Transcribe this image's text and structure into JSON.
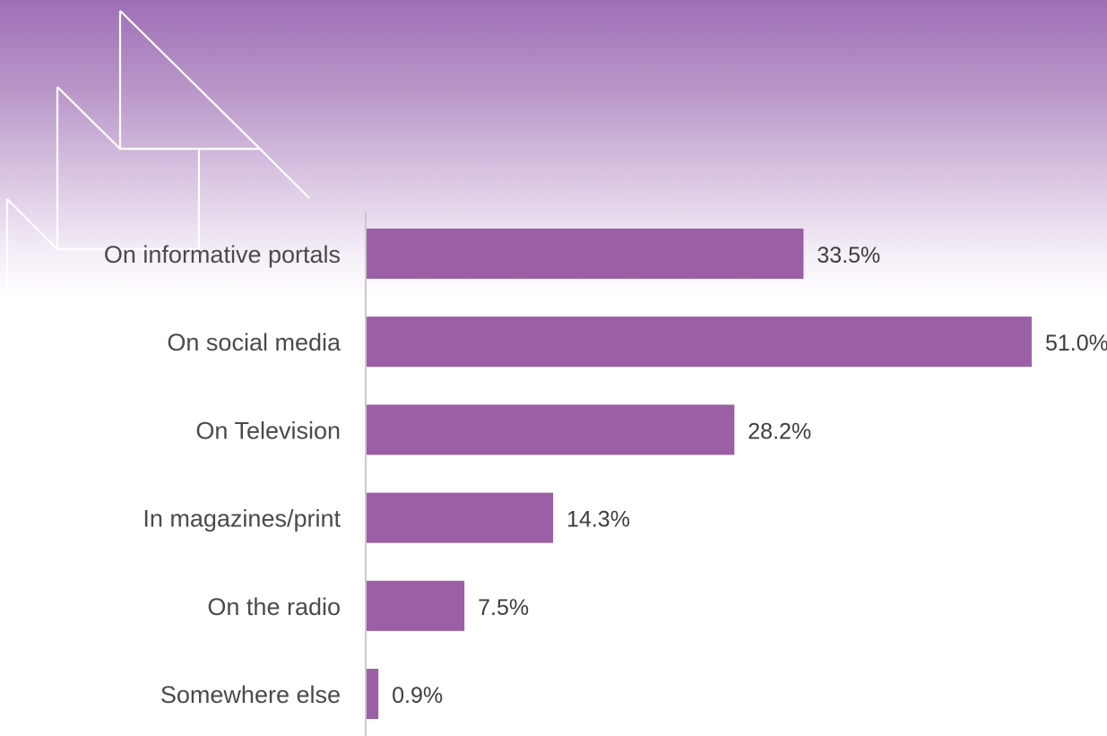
{
  "colors": {
    "bar": "#9b5fa5",
    "axis": "#c9c9c9",
    "header_top": "#9e6fb6",
    "decor_lines": "#ffffff"
  },
  "decoration": "white-triangle-outlines",
  "chart_data": {
    "type": "bar",
    "orientation": "horizontal",
    "title": "",
    "xlabel": "",
    "ylabel": "",
    "categories": [
      "On informative portals",
      "On social media",
      "On Television",
      "In magazines/print",
      "On the radio",
      "Somewhere else"
    ],
    "values": [
      33.5,
      51.0,
      28.2,
      14.3,
      7.5,
      0.9
    ],
    "value_labels": [
      "33.5%",
      "51.0%",
      "28.2%",
      "14.3%",
      "7.5%",
      "0.9%"
    ],
    "unit": "%",
    "xlim": [
      0,
      51.0
    ],
    "grid": false,
    "legend": "none"
  }
}
